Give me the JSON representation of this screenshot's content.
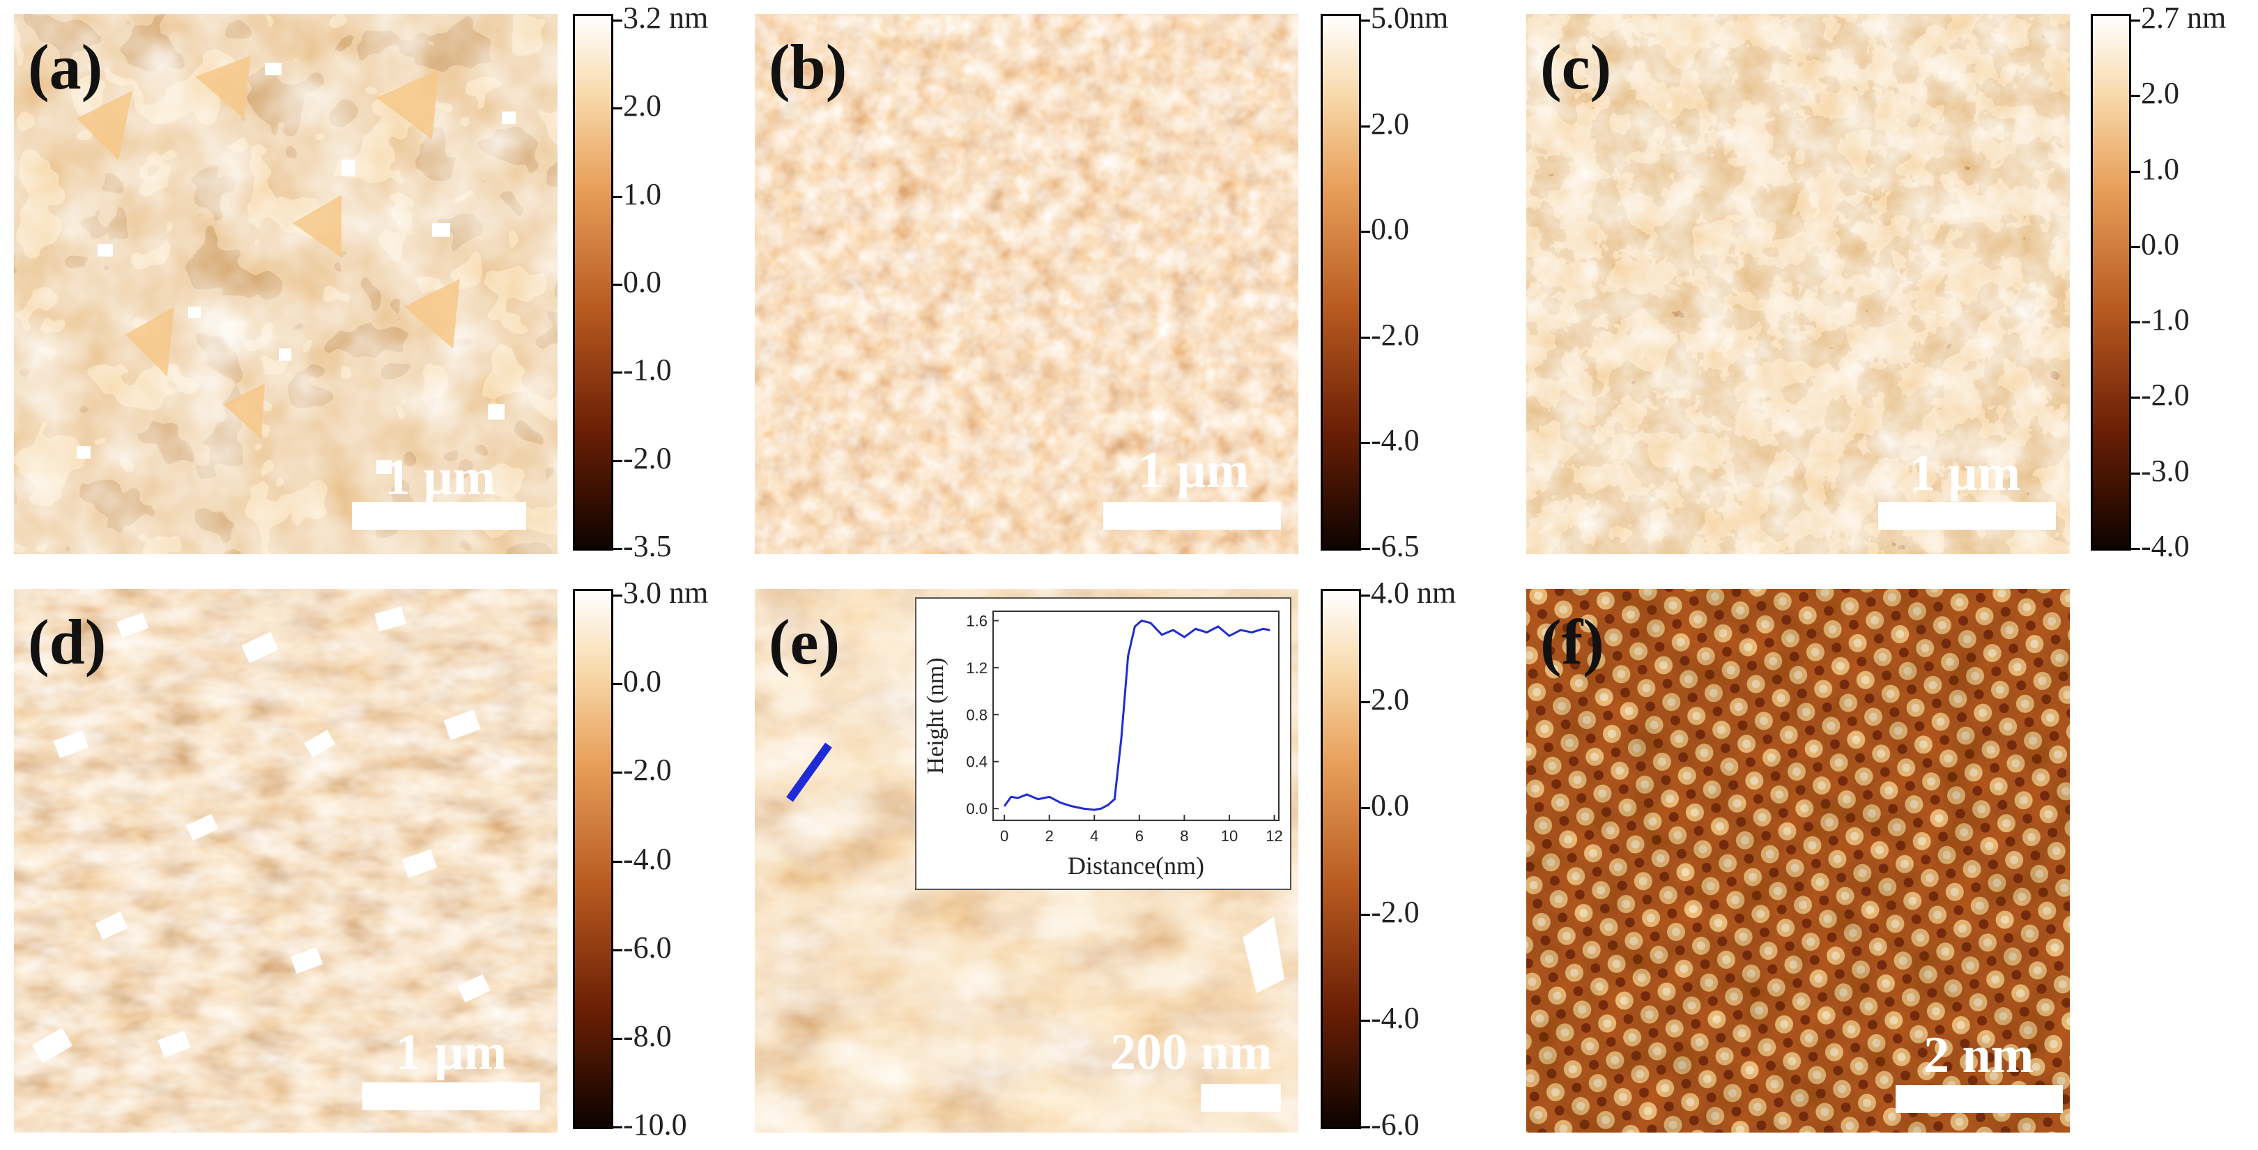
{
  "panels": {
    "a": {
      "label": "(a)",
      "scale": "1 μm"
    },
    "b": {
      "label": "(b)",
      "scale": "1 μm"
    },
    "c": {
      "label": "(c)",
      "scale": "1 μm"
    },
    "d": {
      "label": "(d)",
      "scale": "1 μm"
    },
    "e": {
      "label": "(e)",
      "scale": "200 nm"
    },
    "f": {
      "label": "(f)",
      "scale": "2 nm"
    }
  },
  "colorbars": {
    "a": [
      "3.2 nm",
      "2.0",
      "1.0",
      "0.0",
      "-1.0",
      "-2.0",
      "-3.5"
    ],
    "b": [
      "5.0nm",
      "2.0",
      "0.0",
      "-2.0",
      "-4.0",
      "-6.5"
    ],
    "c": [
      "2.7 nm",
      "2.0",
      "1.0",
      "0.0",
      "-1.0",
      "-2.0",
      "-3.0",
      "-4.0"
    ],
    "d": [
      "3.0 nm",
      "0.0",
      "-2.0",
      "-4.0",
      "-6.0",
      "-8.0",
      "-10.0"
    ],
    "e": [
      "4.0 nm",
      "2.0",
      "0.0",
      "-2.0",
      "-4.0",
      "-6.0"
    ]
  },
  "inset": {
    "xlabel": "Distance(nm)",
    "ylabel": "Height (nm)",
    "xticks": [
      "0",
      "2",
      "4",
      "6",
      "8",
      "10",
      "12"
    ],
    "yticks": [
      "0.0",
      "0.4",
      "0.8",
      "1.2",
      "1.6"
    ],
    "profile_x": [
      0,
      0.3,
      0.6,
      1.0,
      1.5,
      2.0,
      2.5,
      3.0,
      3.5,
      4.0,
      4.3,
      4.6,
      4.9,
      5.2,
      5.5,
      5.8,
      6.1,
      6.5,
      7.0,
      7.5,
      8.0,
      8.5,
      9.0,
      9.5,
      10.0,
      10.5,
      11.0,
      11.5,
      11.8
    ],
    "profile_y": [
      0.02,
      0.1,
      0.09,
      0.12,
      0.08,
      0.1,
      0.05,
      0.02,
      0.0,
      -0.01,
      0.0,
      0.03,
      0.08,
      0.6,
      1.3,
      1.55,
      1.6,
      1.58,
      1.48,
      1.52,
      1.46,
      1.53,
      1.5,
      1.55,
      1.47,
      1.52,
      1.5,
      1.53,
      1.52
    ]
  },
  "colors": {
    "afm_dark": "#1a0800",
    "afm_mid": "#c0662a",
    "afm_light": "#f0b870",
    "afm_white": "#ffffff",
    "profile_line": "#1f2bd6"
  }
}
